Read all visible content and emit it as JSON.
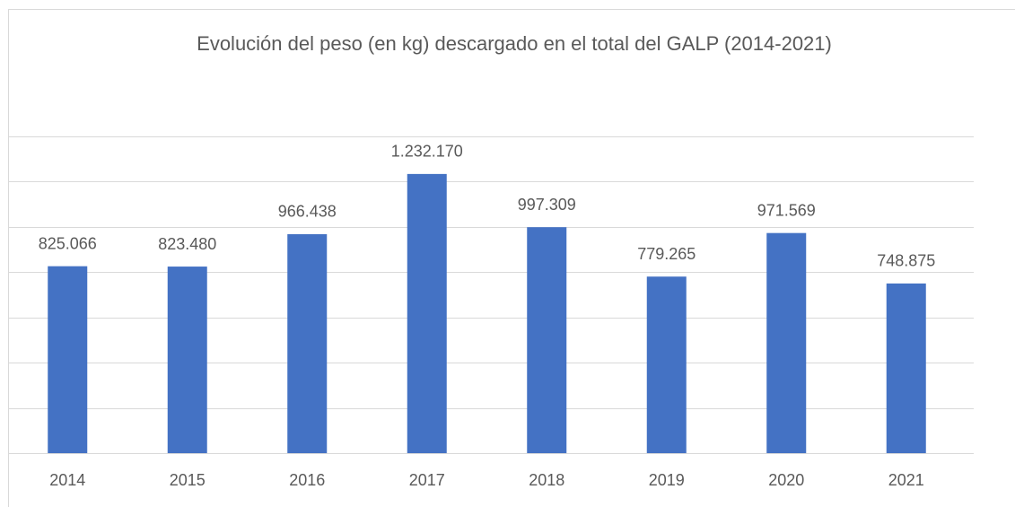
{
  "chart_data": {
    "type": "bar",
    "title": "Evolución del peso (en kg) descargado en el total del GALP (2014-2021)",
    "categories": [
      "2014",
      "2015",
      "2016",
      "2017",
      "2018",
      "2019",
      "2020",
      "2021"
    ],
    "values": [
      825066,
      823480,
      966438,
      1232170,
      997309,
      779265,
      971569,
      748875
    ],
    "value_labels": [
      "825.066",
      "823.480",
      "966.438",
      "1.232.170",
      "997.309",
      "779.265",
      "971.569",
      "748.875"
    ],
    "color": "#4472c4",
    "ylim": [
      0,
      1400000
    ],
    "yticks": [
      0,
      200000,
      400000,
      600000,
      800000,
      1000000,
      1200000,
      1400000
    ],
    "grid": true
  }
}
